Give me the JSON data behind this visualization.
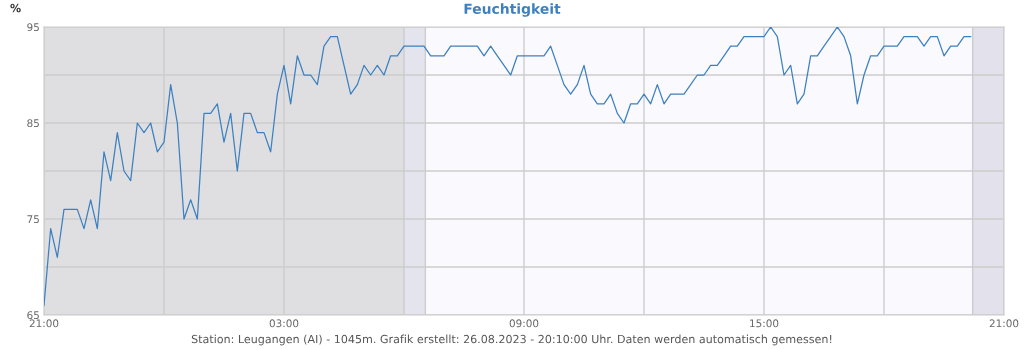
{
  "chart_data": {
    "type": "line",
    "title": "Feuchtigkeit",
    "ylabel": "%",
    "x": [
      "2023-08-25T21:00",
      "2023-08-25T21:10",
      "2023-08-25T21:20",
      "2023-08-25T21:30",
      "2023-08-25T21:40",
      "2023-08-25T21:50",
      "2023-08-25T22:00",
      "2023-08-25T22:10",
      "2023-08-25T22:20",
      "2023-08-25T22:30",
      "2023-08-25T22:40",
      "2023-08-25T22:50",
      "2023-08-25T23:00",
      "2023-08-25T23:10",
      "2023-08-25T23:20",
      "2023-08-25T23:30",
      "2023-08-25T23:40",
      "2023-08-25T23:50",
      "2023-08-26T00:00",
      "2023-08-26T00:10",
      "2023-08-26T00:20",
      "2023-08-26T00:30",
      "2023-08-26T00:40",
      "2023-08-26T00:50",
      "2023-08-26T01:00",
      "2023-08-26T01:10",
      "2023-08-26T01:20",
      "2023-08-26T01:30",
      "2023-08-26T01:40",
      "2023-08-26T01:50",
      "2023-08-26T02:00",
      "2023-08-26T02:10",
      "2023-08-26T02:20",
      "2023-08-26T02:30",
      "2023-08-26T02:40",
      "2023-08-26T02:50",
      "2023-08-26T03:00",
      "2023-08-26T03:10",
      "2023-08-26T03:20",
      "2023-08-26T03:30",
      "2023-08-26T03:40",
      "2023-08-26T03:50",
      "2023-08-26T04:00",
      "2023-08-26T04:10",
      "2023-08-26T04:20",
      "2023-08-26T04:30",
      "2023-08-26T04:40",
      "2023-08-26T04:50",
      "2023-08-26T05:00",
      "2023-08-26T05:10",
      "2023-08-26T05:20",
      "2023-08-26T05:30",
      "2023-08-26T05:40",
      "2023-08-26T05:50",
      "2023-08-26T06:00",
      "2023-08-26T06:10",
      "2023-08-26T06:20",
      "2023-08-26T06:30",
      "2023-08-26T06:40",
      "2023-08-26T06:50",
      "2023-08-26T07:00",
      "2023-08-26T07:10",
      "2023-08-26T07:20",
      "2023-08-26T07:30",
      "2023-08-26T07:40",
      "2023-08-26T07:50",
      "2023-08-26T08:00",
      "2023-08-26T08:10",
      "2023-08-26T08:20",
      "2023-08-26T08:30",
      "2023-08-26T08:40",
      "2023-08-26T08:50",
      "2023-08-26T09:00",
      "2023-08-26T09:10",
      "2023-08-26T09:20",
      "2023-08-26T09:30",
      "2023-08-26T09:40",
      "2023-08-26T09:50",
      "2023-08-26T10:00",
      "2023-08-26T10:10",
      "2023-08-26T10:20",
      "2023-08-26T10:30",
      "2023-08-26T10:40",
      "2023-08-26T10:50",
      "2023-08-26T11:00",
      "2023-08-26T11:10",
      "2023-08-26T11:20",
      "2023-08-26T11:30",
      "2023-08-26T11:40",
      "2023-08-26T11:50",
      "2023-08-26T12:00",
      "2023-08-26T12:10",
      "2023-08-26T12:20",
      "2023-08-26T12:30",
      "2023-08-26T12:40",
      "2023-08-26T12:50",
      "2023-08-26T13:00",
      "2023-08-26T13:10",
      "2023-08-26T13:20",
      "2023-08-26T13:30",
      "2023-08-26T13:40",
      "2023-08-26T13:50",
      "2023-08-26T14:00",
      "2023-08-26T14:10",
      "2023-08-26T14:20",
      "2023-08-26T14:30",
      "2023-08-26T14:40",
      "2023-08-26T14:50",
      "2023-08-26T15:00",
      "2023-08-26T15:10",
      "2023-08-26T15:20",
      "2023-08-26T15:30",
      "2023-08-26T15:40",
      "2023-08-26T15:50",
      "2023-08-26T16:00",
      "2023-08-26T16:10",
      "2023-08-26T16:20",
      "2023-08-26T16:30",
      "2023-08-26T16:40",
      "2023-08-26T16:50",
      "2023-08-26T17:00",
      "2023-08-26T17:10",
      "2023-08-26T17:20",
      "2023-08-26T17:30",
      "2023-08-26T17:40",
      "2023-08-26T17:50",
      "2023-08-26T18:00",
      "2023-08-26T18:10",
      "2023-08-26T18:20",
      "2023-08-26T18:30",
      "2023-08-26T18:40",
      "2023-08-26T18:50",
      "2023-08-26T19:00",
      "2023-08-26T19:10",
      "2023-08-26T19:20",
      "2023-08-26T19:30",
      "2023-08-26T19:40",
      "2023-08-26T19:50",
      "2023-08-26T20:00",
      "2023-08-26T20:10"
    ],
    "series": [
      {
        "color": "#3c80c0",
        "values": [
          66,
          74,
          71,
          76,
          76,
          76,
          74,
          77,
          74,
          82,
          79,
          84,
          80,
          79,
          85,
          84,
          85,
          82,
          83,
          89,
          85,
          75,
          77,
          75,
          86,
          86,
          87,
          83,
          86,
          80,
          86,
          86,
          84,
          84,
          82,
          88,
          91,
          87,
          92,
          90,
          90,
          89,
          93,
          94,
          94,
          91,
          88,
          89,
          91,
          90,
          91,
          90,
          92,
          92,
          93,
          93,
          93,
          93,
          92,
          92,
          92,
          93,
          93,
          93,
          93,
          93,
          92,
          93,
          92,
          91,
          90,
          92,
          92,
          92,
          92,
          92,
          93,
          91,
          89,
          88,
          89,
          91,
          88,
          87,
          87,
          88,
          86,
          85,
          87,
          87,
          88,
          87,
          89,
          87,
          88,
          88,
          88,
          89,
          90,
          90,
          91,
          91,
          92,
          93,
          93,
          94,
          94,
          94,
          94,
          95,
          94,
          90,
          91,
          87,
          88,
          92,
          92,
          93,
          94,
          95,
          94,
          92,
          87,
          90,
          92,
          92,
          93,
          93,
          93,
          94,
          94,
          94,
          93,
          94,
          94,
          92,
          93,
          93,
          94,
          94
        ]
      }
    ],
    "xlim": [
      "2023-08-25T21:00",
      "2023-08-26T21:00"
    ],
    "xticks": [
      {
        "value": "2023-08-25T21:00",
        "label": "21:00"
      },
      {
        "value": "2023-08-26T00:00",
        "label": null
      },
      {
        "value": "2023-08-26T03:00",
        "label": "03:00"
      },
      {
        "value": "2023-08-26T06:00",
        "label": null
      },
      {
        "value": "2023-08-26T09:00",
        "label": "09:00"
      },
      {
        "value": "2023-08-26T12:00",
        "label": null
      },
      {
        "value": "2023-08-26T15:00",
        "label": "15:00"
      },
      {
        "value": "2023-08-26T18:00",
        "label": null
      },
      {
        "value": "2023-08-26T21:00",
        "label": "21:00"
      }
    ],
    "ylim": [
      65,
      95
    ],
    "yticks": [
      65,
      {
        "value": 70,
        "label": null
      },
      75,
      {
        "value": 80,
        "label": null
      },
      85,
      {
        "value": 90,
        "label": null
      },
      95
    ],
    "grid": true,
    "marker": "none",
    "line_style": "solid",
    "bands": [
      {
        "axis": "x",
        "from": "2023-08-25T21:00",
        "to": "2023-08-26T06:00",
        "color": "#dfdfe1"
      },
      {
        "axis": "x",
        "from": "2023-08-26T06:00",
        "to": "2023-08-26T06:32",
        "color": "#e4e4ee"
      },
      {
        "axis": "x",
        "from": "2023-08-26T06:32",
        "to": "2023-08-26T20:13",
        "color": "#faf9fe"
      },
      {
        "axis": "x",
        "from": "2023-08-26T20:13",
        "to": "2023-08-26T21:00",
        "color": "#e3e2ec"
      }
    ],
    "ref_lines": [
      {
        "axis": "x",
        "value": "2023-08-26T06:32",
        "color": "#cccccc",
        "line_style": "solid"
      },
      {
        "axis": "x",
        "value": "2023-08-26T20:13",
        "color": "#cccccc",
        "line_style": "solid"
      }
    ],
    "annotations": [
      "Station: Leugangen (AI) - 1045m. Grafik erstellt: 26.08.2023 - 20:10:00 Uhr. Daten werden automatisch gemessen!"
    ]
  }
}
